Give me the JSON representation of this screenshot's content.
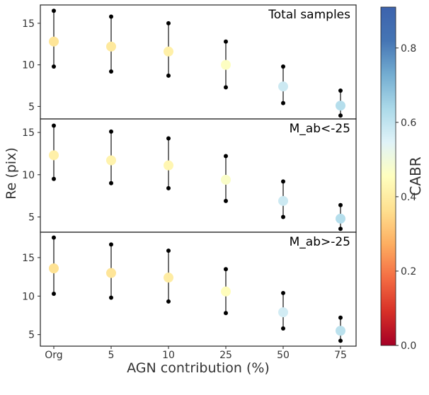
{
  "chart_data": {
    "type": "scatter",
    "xlabel": "AGN contribution (%)",
    "ylabel": "Re (pix)",
    "x_categories": [
      "Org",
      "5",
      "10",
      "25",
      "50",
      "75"
    ],
    "panels": [
      {
        "label": "Total samples",
        "ylim": [
          3.5,
          17.2
        ],
        "yticks": [
          5,
          10,
          15
        ],
        "points": [
          {
            "x": "Org",
            "mean": 12.8,
            "low": 9.8,
            "high": 16.5,
            "cabr": 0.38
          },
          {
            "x": "5",
            "mean": 12.2,
            "low": 9.2,
            "high": 15.8,
            "cabr": 0.39
          },
          {
            "x": "10",
            "mean": 11.6,
            "low": 8.7,
            "high": 15.0,
            "cabr": 0.41
          },
          {
            "x": "25",
            "mean": 10.0,
            "low": 7.3,
            "high": 12.8,
            "cabr": 0.46
          },
          {
            "x": "50",
            "mean": 7.4,
            "low": 5.4,
            "high": 9.8,
            "cabr": 0.58
          },
          {
            "x": "75",
            "mean": 5.1,
            "low": 3.9,
            "high": 6.9,
            "cabr": 0.62
          }
        ]
      },
      {
        "label": "M_ab<-25",
        "ylim": [
          3.2,
          16.6
        ],
        "yticks": [
          5,
          10,
          15
        ],
        "points": [
          {
            "x": "Org",
            "mean": 12.3,
            "low": 9.5,
            "high": 15.8,
            "cabr": 0.41
          },
          {
            "x": "5",
            "mean": 11.7,
            "low": 9.0,
            "high": 15.1,
            "cabr": 0.42
          },
          {
            "x": "10",
            "mean": 11.1,
            "low": 8.4,
            "high": 14.3,
            "cabr": 0.43
          },
          {
            "x": "25",
            "mean": 9.4,
            "low": 6.9,
            "high": 12.2,
            "cabr": 0.47
          },
          {
            "x": "50",
            "mean": 6.9,
            "low": 5.0,
            "high": 9.2,
            "cabr": 0.58
          },
          {
            "x": "75",
            "mean": 4.8,
            "low": 3.6,
            "high": 6.4,
            "cabr": 0.62
          }
        ]
      },
      {
        "label": "M_ab>-25",
        "ylim": [
          3.5,
          18.3
        ],
        "yticks": [
          5,
          10,
          15
        ],
        "points": [
          {
            "x": "Org",
            "mean": 13.6,
            "low": 10.3,
            "high": 17.6,
            "cabr": 0.37
          },
          {
            "x": "5",
            "mean": 13.0,
            "low": 9.8,
            "high": 16.7,
            "cabr": 0.38
          },
          {
            "x": "10",
            "mean": 12.4,
            "low": 9.3,
            "high": 15.9,
            "cabr": 0.4
          },
          {
            "x": "25",
            "mean": 10.6,
            "low": 7.8,
            "high": 13.5,
            "cabr": 0.45
          },
          {
            "x": "50",
            "mean": 7.9,
            "low": 5.8,
            "high": 10.4,
            "cabr": 0.57
          },
          {
            "x": "75",
            "mean": 5.5,
            "low": 4.2,
            "high": 7.2,
            "cabr": 0.61
          }
        ]
      }
    ],
    "colorbar": {
      "label": "CABR",
      "colormap": "RdYlBu",
      "range": [
        0.0,
        0.91
      ],
      "ticks": [
        "0.0",
        "0.2",
        "0.4",
        "0.6",
        "0.8"
      ]
    },
    "grid": false
  }
}
